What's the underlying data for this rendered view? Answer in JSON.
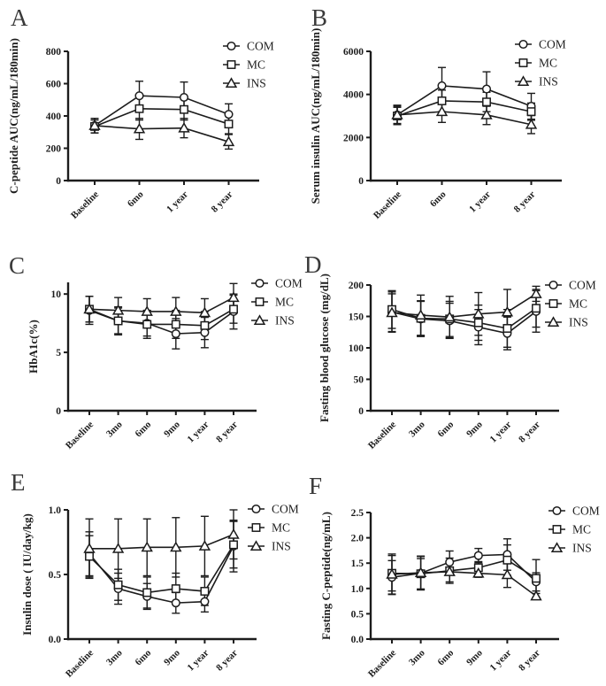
{
  "figure": {
    "background": "#ffffff",
    "ink_color": "#1c1c1c",
    "letter_color": "#3a3a3a"
  },
  "chart_data": [
    {
      "panel": "A",
      "type": "line",
      "title": "",
      "xlabel": "",
      "ylabel": "C-peptide AUC(ng/mL/180min)",
      "categories": [
        "Baseline",
        "6mo",
        "1 year",
        "8 year"
      ],
      "ylim": [
        0,
        800
      ],
      "yticks": [
        0,
        200,
        400,
        600,
        800
      ],
      "ytick_labels": [
        "0",
        "200",
        "400",
        "600",
        "800"
      ],
      "grid": false,
      "legend_position": "top-right",
      "legend_entries": [
        "COM",
        "MC",
        "INS"
      ],
      "series": [
        {
          "name": "COM",
          "marker": "circle",
          "values": [
            340,
            525,
            515,
            410
          ],
          "errors": [
            45,
            90,
            95,
            65
          ]
        },
        {
          "name": "MC",
          "marker": "square",
          "values": [
            335,
            445,
            440,
            350
          ],
          "errors": [
            40,
            70,
            65,
            60
          ]
        },
        {
          "name": "INS",
          "marker": "triangle",
          "values": [
            340,
            320,
            325,
            240
          ],
          "errors": [
            45,
            65,
            60,
            45
          ]
        }
      ]
    },
    {
      "panel": "B",
      "type": "line",
      "title": "",
      "xlabel": "",
      "ylabel": "Serum insulin AUC(ng/mL/180min)",
      "categories": [
        "Baseline",
        "6mo",
        "1 year",
        "8 year"
      ],
      "ylim": [
        0,
        6000
      ],
      "yticks": [
        0,
        2000,
        4000,
        6000
      ],
      "ytick_labels": [
        "0",
        "2000",
        "4000",
        "6000"
      ],
      "grid": false,
      "legend_position": "top-right",
      "legend_entries": [
        "COM",
        "MC",
        "INS"
      ],
      "series": [
        {
          "name": "COM",
          "marker": "circle",
          "values": [
            3050,
            4400,
            4250,
            3450
          ],
          "errors": [
            450,
            850,
            800,
            600
          ]
        },
        {
          "name": "MC",
          "marker": "square",
          "values": [
            3000,
            3700,
            3650,
            3200
          ],
          "errors": [
            400,
            500,
            450,
            400
          ]
        },
        {
          "name": "INS",
          "marker": "triangle",
          "values": [
            3050,
            3200,
            3050,
            2600
          ],
          "errors": [
            400,
            500,
            450,
            420
          ]
        }
      ]
    },
    {
      "panel": "C",
      "type": "line",
      "title": "",
      "xlabel": "",
      "ylabel": "HbA1c(%)",
      "categories": [
        "Baseline",
        "3mo",
        "6mo",
        "9mo",
        "1 year",
        "8 year"
      ],
      "ylim": [
        0,
        11
      ],
      "yticks": [
        0,
        5,
        10
      ],
      "ytick_labels": [
        "0",
        "5",
        "10"
      ],
      "grid": false,
      "legend_position": "top-right",
      "legend_entries": [
        "COM",
        "MC",
        "INS"
      ],
      "series": [
        {
          "name": "COM",
          "marker": "circle",
          "values": [
            8.6,
            7.7,
            7.5,
            6.6,
            6.7,
            8.5
          ],
          "errors": [
            1.2,
            1.1,
            1.1,
            1.3,
            1.3,
            1.5
          ]
        },
        {
          "name": "MC",
          "marker": "square",
          "values": [
            8.7,
            7.7,
            7.4,
            7.4,
            7.3,
            8.7
          ],
          "errors": [
            1.1,
            1.2,
            1.2,
            1.2,
            1.2,
            1.2
          ]
        },
        {
          "name": "INS",
          "marker": "triangle",
          "values": [
            8.7,
            8.6,
            8.5,
            8.5,
            8.4,
            9.7
          ],
          "errors": [
            1.1,
            1.1,
            1.1,
            1.2,
            1.2,
            1.2
          ]
        }
      ]
    },
    {
      "panel": "D",
      "type": "line",
      "title": "",
      "xlabel": "",
      "ylabel": "Fasting blood glucose (mg/dL)",
      "categories": [
        "Baseline",
        "3mo",
        "6mo",
        "9mo",
        "1 year",
        "8 year"
      ],
      "ylim": [
        0,
        200
      ],
      "yticks": [
        0,
        50,
        100,
        150,
        200
      ],
      "ytick_labels": [
        "0",
        "50",
        "100",
        "150",
        "200"
      ],
      "grid": false,
      "legend_position": "top-right",
      "legend_entries": [
        "COM",
        "MC",
        "INS"
      ],
      "series": [
        {
          "name": "COM",
          "marker": "circle",
          "values": [
            157,
            146,
            143,
            133,
            123,
            158
          ],
          "errors": [
            32,
            28,
            28,
            28,
            26,
            33
          ]
        },
        {
          "name": "MC",
          "marker": "square",
          "values": [
            161,
            147,
            146,
            140,
            131,
            163
          ],
          "errors": [
            30,
            28,
            28,
            28,
            30,
            30
          ]
        },
        {
          "name": "INS",
          "marker": "triangle",
          "values": [
            156,
            152,
            149,
            154,
            157,
            186
          ],
          "errors": [
            30,
            32,
            33,
            34,
            36,
            12
          ]
        }
      ]
    },
    {
      "panel": "E",
      "type": "line",
      "title": "",
      "xlabel": "",
      "ylabel": "Insulin dose ( IU/day/kg)",
      "categories": [
        "Baseline",
        "3mo",
        "6mo",
        "9mo",
        "1 year",
        "8 year"
      ],
      "ylim": [
        0,
        1.0
      ],
      "yticks": [
        0,
        0.5,
        1.0
      ],
      "ytick_labels": [
        "0.0",
        "0.5",
        "1.0"
      ],
      "grid": false,
      "legend_position": "top-right",
      "legend_entries": [
        "COM",
        "MC",
        "INS"
      ],
      "series": [
        {
          "name": "COM",
          "marker": "circle",
          "values": [
            0.66,
            0.39,
            0.33,
            0.28,
            0.29,
            0.72
          ],
          "errors": [
            0.17,
            0.12,
            0.1,
            0.08,
            0.08,
            0.2
          ]
        },
        {
          "name": "MC",
          "marker": "square",
          "values": [
            0.64,
            0.42,
            0.36,
            0.39,
            0.37,
            0.73
          ],
          "errors": [
            0.16,
            0.12,
            0.12,
            0.12,
            0.11,
            0.18
          ]
        },
        {
          "name": "INS",
          "marker": "triangle",
          "values": [
            0.7,
            0.7,
            0.71,
            0.71,
            0.72,
            0.81
          ],
          "errors": [
            0.23,
            0.23,
            0.22,
            0.23,
            0.23,
            0.19
          ]
        }
      ]
    },
    {
      "panel": "F",
      "type": "line",
      "title": "",
      "xlabel": "",
      "ylabel": "Fasting C-peptide(ng/mL)",
      "categories": [
        "Baseline",
        "3mo",
        "6mo",
        "9mo",
        "1 year",
        "8 year"
      ],
      "ylim": [
        0,
        2.5
      ],
      "yticks": [
        0,
        0.5,
        1.0,
        1.5,
        2.0,
        2.5
      ],
      "ytick_labels": [
        "0.0",
        "0.5",
        "1.0",
        "1.5",
        "2.0",
        "2.5"
      ],
      "grid": false,
      "legend_position": "top-right",
      "legend_entries": [
        "COM",
        "MC",
        "INS"
      ],
      "series": [
        {
          "name": "COM",
          "marker": "circle",
          "values": [
            1.22,
            1.3,
            1.52,
            1.65,
            1.67,
            1.13
          ],
          "errors": [
            0.33,
            0.33,
            0.22,
            0.14,
            0.31,
            0.18
          ]
        },
        {
          "name": "MC",
          "marker": "square",
          "values": [
            1.3,
            1.29,
            1.35,
            1.41,
            1.56,
            1.2
          ],
          "errors": [
            0.35,
            0.3,
            0.25,
            0.12,
            0.3,
            0.37
          ]
        },
        {
          "name": "INS",
          "marker": "triangle",
          "values": [
            1.28,
            1.31,
            1.33,
            1.3,
            1.27,
            0.85
          ],
          "errors": [
            0.4,
            0.33,
            0.2,
            0.08,
            0.25,
            0.05
          ]
        }
      ]
    }
  ]
}
